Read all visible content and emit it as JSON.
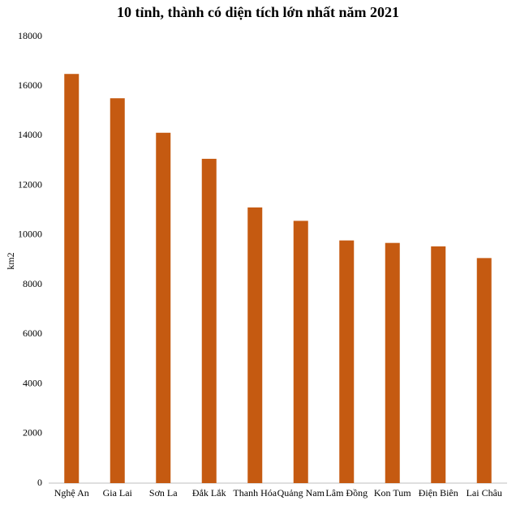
{
  "chart_data": {
    "type": "bar",
    "title": "10 tỉnh, thành có diện tích lớn nhất năm 2021",
    "y_label": "km2",
    "categories": [
      "Nghệ An",
      "Gia Lai",
      "Sơn La",
      "Đắk Lắk",
      "Thanh Hóa",
      "Quảng Nam",
      "Lâm Đồng",
      "Kon Tum",
      "Điện Biên",
      "Lai Châu"
    ],
    "values": [
      16490,
      15510,
      14120,
      13070,
      11110,
      10570,
      9780,
      9680,
      9540,
      9070
    ],
    "color": "#c55a11",
    "ylim": [
      0,
      18000
    ],
    "yticks": [
      0,
      2000,
      4000,
      6000,
      8000,
      10000,
      12000,
      14000,
      16000,
      18000
    ],
    "grid": false
  }
}
